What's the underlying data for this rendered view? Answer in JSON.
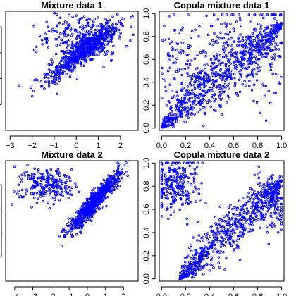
{
  "style": {
    "point_color": "#0000ff",
    "frame_color": "#000000",
    "background": "#ffffff"
  },
  "chart_data": [
    {
      "type": "scatter",
      "title": "Mixture data 1",
      "xlabel": "",
      "ylabel": "",
      "xlim": [
        -3.2,
        2.8
      ],
      "ylim": [
        -3.0,
        1.6
      ],
      "xticks": [
        -3,
        -2,
        -1,
        0,
        1,
        2
      ],
      "xtick_labels": [
        "−3",
        "−2",
        "−1",
        "0",
        "1",
        "2"
      ],
      "yticks": [
        -2,
        -1,
        0,
        1
      ],
      "ytick_labels": [
        "",
        "",
        "",
        ""
      ],
      "grid": false,
      "n_points": 1000,
      "description_of_structure": "two overlapping components"
    },
    {
      "type": "scatter",
      "title": "Copula mixture data 1",
      "xlabel": "",
      "ylabel": "",
      "xlim": [
        -0.02,
        1.02
      ],
      "ylim": [
        -0.02,
        1.02
      ],
      "xticks": [
        0.0,
        0.2,
        0.4,
        0.6,
        0.8,
        1.0
      ],
      "xtick_labels": [
        "0.0",
        "0.2",
        "0.4",
        "0.6",
        "0.8",
        "1.0"
      ],
      "yticks": [
        0.0,
        0.2,
        0.4,
        0.6,
        0.8,
        1.0
      ],
      "ytick_labels": [
        "0.0",
        "0.2",
        "0.4",
        "0.6",
        "0.8",
        "1.0"
      ],
      "grid": false,
      "n_points": 1000
    },
    {
      "type": "scatter",
      "title": "Mixture data 2",
      "xlabel": "",
      "ylabel": "",
      "xlim": [
        -4.5,
        2.8
      ],
      "ylim": [
        -3.0,
        2.0
      ],
      "xticks": [
        -4,
        -3,
        -2,
        -1,
        0,
        1,
        2
      ],
      "xtick_labels": [
        "−4",
        "−3",
        "−2",
        "−1",
        "0",
        "1",
        "2"
      ],
      "yticks": [
        -2,
        -1,
        0,
        1
      ],
      "ytick_labels": [
        "",
        "",
        "",
        ""
      ],
      "grid": false,
      "n_points": 1000
    },
    {
      "type": "scatter",
      "title": "Copula mixture data 2",
      "xlabel": "",
      "ylabel": "",
      "xlim": [
        -0.02,
        1.02
      ],
      "ylim": [
        -0.02,
        1.02
      ],
      "xticks": [
        0.0,
        0.2,
        0.4,
        0.6,
        0.8,
        1.0
      ],
      "xtick_labels": [
        "0.0",
        "0.2",
        "0.4",
        "0.6",
        "0.8",
        "1.0"
      ],
      "yticks": [
        0.0,
        0.2,
        0.4,
        0.6,
        0.8,
        1.0
      ],
      "ytick_labels": [
        "0.0",
        "0.2",
        "0.4",
        "0.6",
        "0.8",
        "1.0"
      ],
      "grid": false,
      "n_points": 1000
    }
  ]
}
